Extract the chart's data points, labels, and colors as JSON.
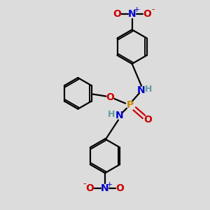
{
  "background_color": "#dcdcdc",
  "atom_colors": {
    "C": "#000000",
    "H": "#5f9ea0",
    "N": "#0000cc",
    "O": "#cc0000",
    "P": "#cc8800"
  },
  "bond_color": "#000000",
  "figsize": [
    3.0,
    3.0
  ],
  "dpi": 100,
  "xlim": [
    0,
    10
  ],
  "ylim": [
    0,
    10
  ]
}
